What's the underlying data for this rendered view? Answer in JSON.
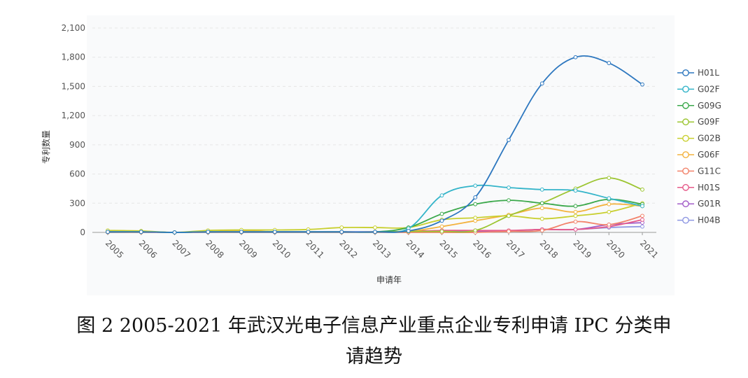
{
  "chart_data": {
    "type": "line",
    "xlabel": "申请年",
    "ylabel": "专利数量",
    "ylim": [
      0,
      2100
    ],
    "yticks": [
      "0",
      "300",
      "600",
      "900",
      "1,200",
      "1,500",
      "1,800",
      "2,100"
    ],
    "categories": [
      "2005",
      "2006",
      "2007",
      "2008",
      "2009",
      "2010",
      "2011",
      "2012",
      "2013",
      "2014",
      "2015",
      "2016",
      "2017",
      "2018",
      "2019",
      "2020",
      "2021"
    ],
    "grid": true,
    "legend_position": "right",
    "series": [
      {
        "name": "H01L",
        "color": "#2d77bf",
        "values": [
          5,
          5,
          0,
          5,
          5,
          5,
          5,
          5,
          5,
          15,
          120,
          360,
          950,
          1530,
          1800,
          1740,
          1520
        ]
      },
      {
        "name": "G02F",
        "color": "#33b4c9",
        "values": [
          5,
          5,
          0,
          5,
          5,
          5,
          5,
          5,
          5,
          40,
          380,
          480,
          460,
          440,
          430,
          350,
          270
        ]
      },
      {
        "name": "G09G",
        "color": "#3aa84a",
        "values": [
          5,
          5,
          0,
          5,
          5,
          5,
          5,
          5,
          5,
          50,
          190,
          290,
          330,
          300,
          270,
          340,
          290
        ]
      },
      {
        "name": "G09F",
        "color": "#9cc531",
        "values": [
          5,
          5,
          0,
          5,
          5,
          5,
          5,
          5,
          5,
          10,
          10,
          20,
          170,
          300,
          450,
          560,
          440
        ]
      },
      {
        "name": "G02B",
        "color": "#c8cf2e",
        "values": [
          20,
          15,
          0,
          20,
          25,
          25,
          30,
          50,
          50,
          50,
          130,
          150,
          170,
          140,
          170,
          210,
          300
        ]
      },
      {
        "name": "G06F",
        "color": "#f3b23d",
        "values": [
          5,
          5,
          0,
          5,
          20,
          5,
          5,
          5,
          5,
          10,
          60,
          120,
          180,
          250,
          210,
          290,
          270
        ]
      },
      {
        "name": "G11C",
        "color": "#f2836b",
        "values": [
          0,
          0,
          0,
          0,
          0,
          0,
          0,
          0,
          0,
          0,
          0,
          0,
          10,
          20,
          110,
          80,
          170
        ]
      },
      {
        "name": "H01S",
        "color": "#e65a8a",
        "values": [
          5,
          5,
          0,
          5,
          5,
          5,
          5,
          5,
          5,
          10,
          20,
          20,
          20,
          30,
          30,
          60,
          130
        ]
      },
      {
        "name": "G01R",
        "color": "#a25cc8",
        "values": [
          5,
          5,
          0,
          5,
          5,
          5,
          5,
          5,
          5,
          5,
          10,
          10,
          15,
          30,
          30,
          80,
          100
        ]
      },
      {
        "name": "H04B",
        "color": "#8d96e2",
        "values": [
          5,
          5,
          0,
          5,
          5,
          5,
          5,
          5,
          5,
          5,
          10,
          10,
          15,
          30,
          30,
          50,
          60
        ]
      }
    ]
  },
  "caption": {
    "line1": "图 2 2005-2021 年武汉光电子信息产业重点企业专利申请 IPC 分类申",
    "line2": "请趋势"
  }
}
